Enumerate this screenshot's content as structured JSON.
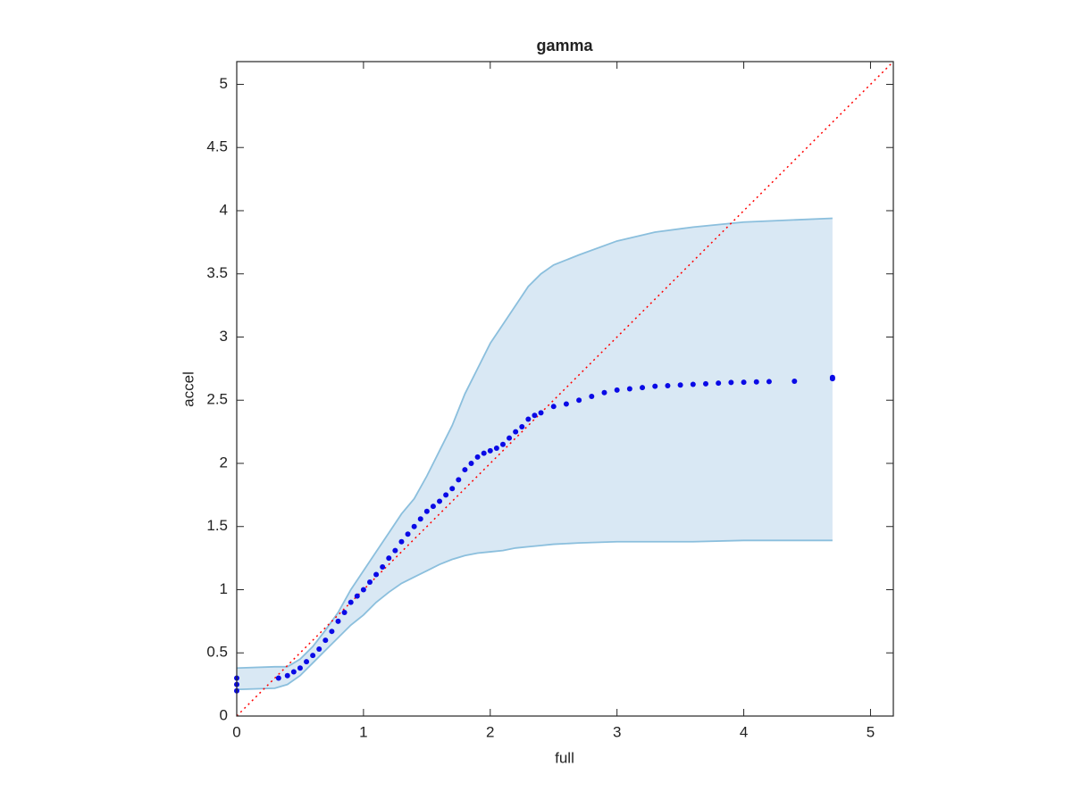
{
  "chart_data": {
    "type": "scatter",
    "title": "gamma",
    "x_label": "full",
    "y_label": "accel",
    "x": [
      0,
      0,
      0,
      0.33,
      0.4,
      0.45,
      0.5,
      0.55,
      0.6,
      0.65,
      0.7,
      0.75,
      0.8,
      0.85,
      0.9,
      0.95,
      1.0,
      1.05,
      1.1,
      1.15,
      1.2,
      1.25,
      1.3,
      1.35,
      1.4,
      1.45,
      1.5,
      1.55,
      1.6,
      1.65,
      1.7,
      1.75,
      1.8,
      1.85,
      1.9,
      1.95,
      2.0,
      2.05,
      2.1,
      2.15,
      2.2,
      2.25,
      2.3,
      2.35,
      2.4,
      2.5,
      2.6,
      2.7,
      2.8,
      2.9,
      3.0,
      3.1,
      3.2,
      3.3,
      3.4,
      3.5,
      3.6,
      3.7,
      3.8,
      3.9,
      4.0,
      4.1,
      4.2,
      4.4,
      4.7,
      4.7
    ],
    "values": [
      0.2,
      0.25,
      0.3,
      0.3,
      0.32,
      0.35,
      0.38,
      0.43,
      0.48,
      0.53,
      0.6,
      0.67,
      0.75,
      0.82,
      0.9,
      0.95,
      1.0,
      1.06,
      1.12,
      1.18,
      1.25,
      1.31,
      1.38,
      1.44,
      1.5,
      1.56,
      1.62,
      1.66,
      1.7,
      1.75,
      1.8,
      1.87,
      1.95,
      2.0,
      2.05,
      2.08,
      2.1,
      2.12,
      2.15,
      2.2,
      2.25,
      2.29,
      2.35,
      2.38,
      2.4,
      2.45,
      2.47,
      2.5,
      2.53,
      2.56,
      2.58,
      2.59,
      2.6,
      2.61,
      2.615,
      2.62,
      2.625,
      2.63,
      2.635,
      2.64,
      2.642,
      2.645,
      2.647,
      2.65,
      2.67,
      2.68
    ],
    "color": "#0a0ae6",
    "band": {
      "x": [
        0,
        0.3,
        0.4,
        0.5,
        0.6,
        0.7,
        0.8,
        0.9,
        1.0,
        1.1,
        1.2,
        1.3,
        1.4,
        1.5,
        1.6,
        1.7,
        1.8,
        1.9,
        2.0,
        2.1,
        2.2,
        2.3,
        2.4,
        2.5,
        2.7,
        3.0,
        3.3,
        3.6,
        4.0,
        4.7
      ],
      "lower": [
        0.21,
        0.22,
        0.25,
        0.32,
        0.42,
        0.52,
        0.62,
        0.72,
        0.8,
        0.9,
        0.98,
        1.05,
        1.1,
        1.15,
        1.2,
        1.24,
        1.27,
        1.29,
        1.3,
        1.31,
        1.33,
        1.34,
        1.35,
        1.36,
        1.37,
        1.38,
        1.38,
        1.38,
        1.39,
        1.39
      ],
      "upper": [
        0.38,
        0.39,
        0.39,
        0.45,
        0.55,
        0.68,
        0.82,
        1.0,
        1.15,
        1.3,
        1.45,
        1.6,
        1.72,
        1.9,
        2.1,
        2.3,
        2.55,
        2.75,
        2.95,
        3.1,
        3.25,
        3.4,
        3.5,
        3.57,
        3.65,
        3.76,
        3.83,
        3.87,
        3.91,
        3.94
      ],
      "color": "#d9e8f4",
      "edge_color": "#8bbfdd"
    },
    "reference_line": {
      "x": [
        0,
        5.18
      ],
      "values": [
        0,
        5.18
      ],
      "color": "#ff0000"
    },
    "xlim": [
      0,
      5.18
    ],
    "ylim": [
      0,
      5.18
    ],
    "xticks": [
      0,
      1,
      2,
      3,
      4,
      5
    ],
    "yticks": [
      0,
      0.5,
      1,
      1.5,
      2,
      2.5,
      3,
      3.5,
      4,
      4.5,
      5
    ]
  }
}
